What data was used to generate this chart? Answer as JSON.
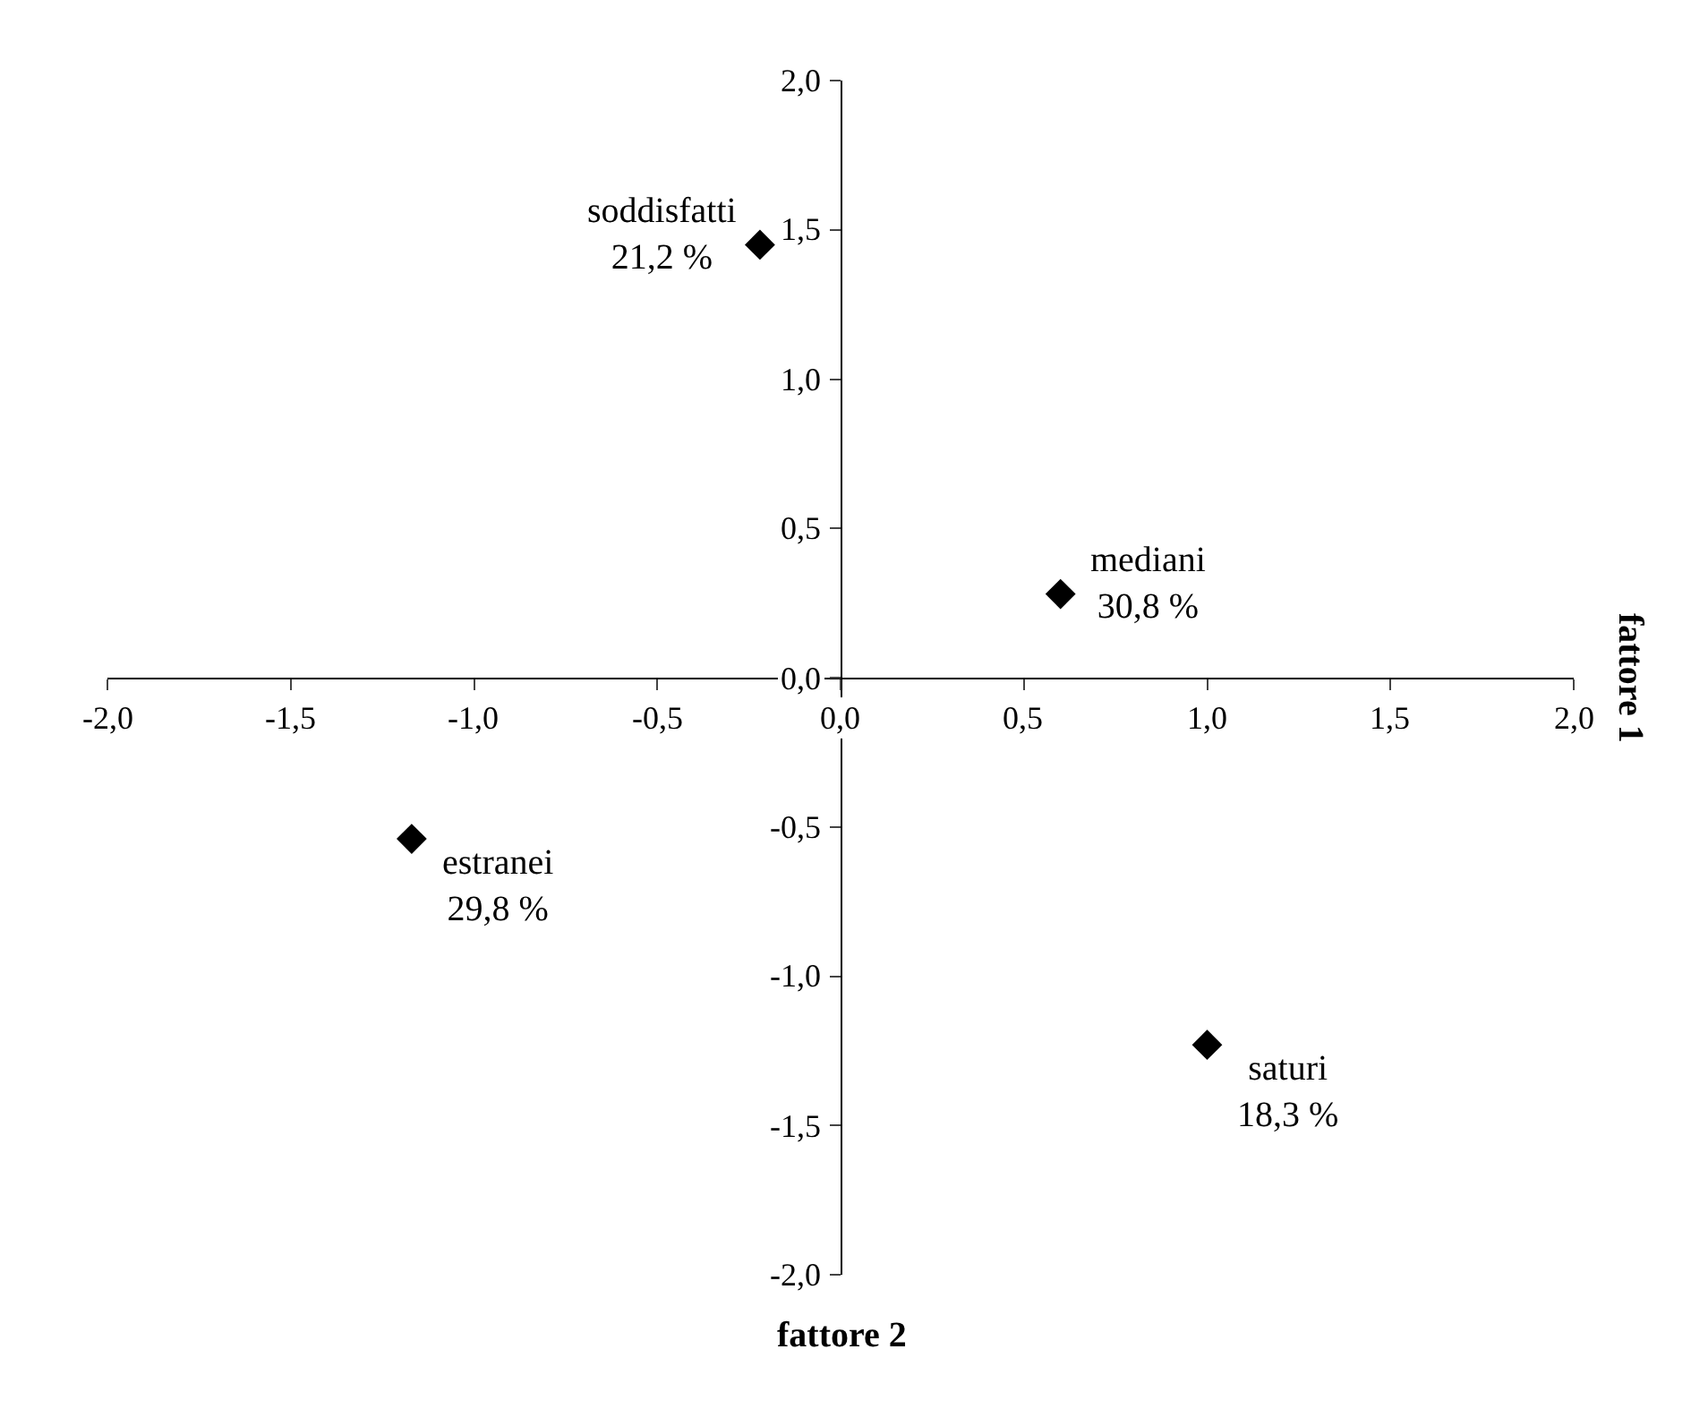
{
  "chart_data": {
    "type": "scatter",
    "x": [
      -0.22,
      0.6,
      -1.17,
      1.0
    ],
    "series": [
      {
        "color": "#000000",
        "values": [
          1.45,
          0.28,
          -0.54,
          -1.23
        ]
      }
    ],
    "marker": "diamond",
    "grid": false,
    "legend": false,
    "xlim": [
      -2.0,
      2.0
    ],
    "ylim": [
      -2.0,
      2.0
    ],
    "xticks": [
      {
        "value": -2.0,
        "label": "-2,0"
      },
      {
        "value": -1.5,
        "label": "-1,5"
      },
      {
        "value": -1.0,
        "label": "-1,0"
      },
      {
        "value": -0.5,
        "label": "-0,5"
      },
      {
        "value": 0.0,
        "label": "0,0"
      },
      {
        "value": 0.5,
        "label": "0,5"
      },
      {
        "value": 1.0,
        "label": "1,0"
      },
      {
        "value": 1.5,
        "label": "1,5"
      },
      {
        "value": 2.0,
        "label": "2,0"
      }
    ],
    "yticks": [
      {
        "value": -2.0,
        "label": "-2,0"
      },
      {
        "value": -1.5,
        "label": "-1,5"
      },
      {
        "value": -1.0,
        "label": "-1,0"
      },
      {
        "value": -0.5,
        "label": "-0,5"
      },
      {
        "value": 0.0,
        "label": "0,0"
      },
      {
        "value": 0.5,
        "label": "0,5"
      },
      {
        "value": 1.0,
        "label": "1,0"
      },
      {
        "value": 1.5,
        "label": "1,5"
      },
      {
        "value": 2.0,
        "label": "2,0"
      }
    ],
    "annotations": [
      "fattore 1",
      "fattore 2",
      {
        "text": "soddisfatti\n21,2 %",
        "x": -0.22,
        "y": 1.45
      },
      {
        "text": "mediani\n30,8 %",
        "x": 0.6,
        "y": 0.28
      },
      {
        "text": "estranei\n29,8 %",
        "x": -1.17,
        "y": -0.54
      },
      {
        "text": "saturi\n18,3 %",
        "x": 1.0,
        "y": -1.23
      }
    ]
  }
}
